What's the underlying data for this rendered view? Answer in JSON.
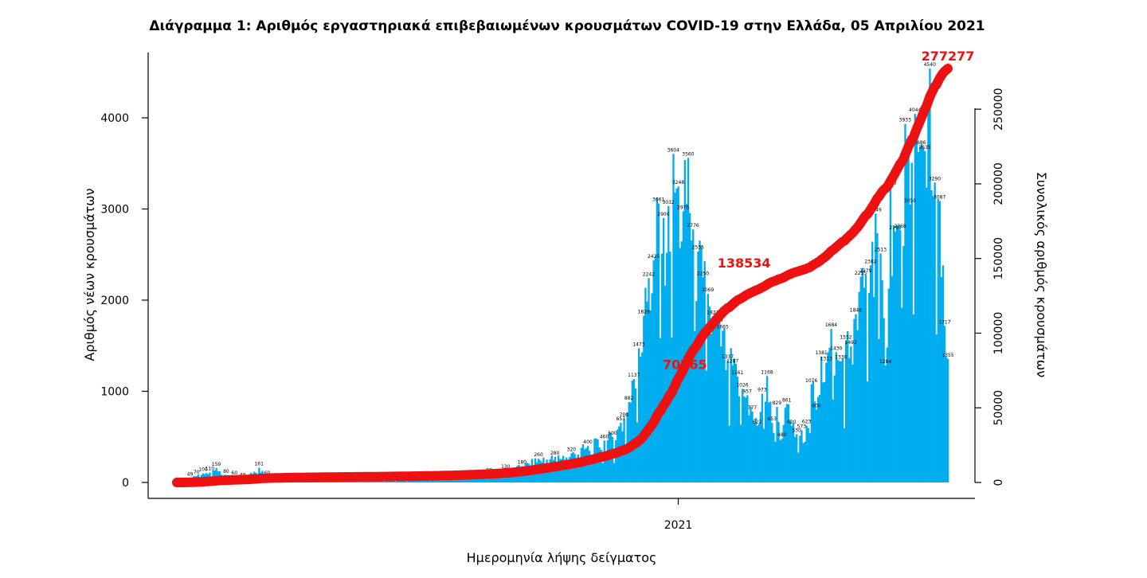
{
  "chart_data": {
    "type": "bar",
    "title": "Διάγραμμα 1: Αριθμός εργαστηριακά επιβεβαιωμένων κρουσμάτων COVID-19 στην Ελλάδα, 05 Απριλίου 2021",
    "xlabel": "Ημερομηνία λήψης δείγματος",
    "ylabel": "Αριθμός νέων κρουσμάτων",
    "y2label": "Συνολικός αριθμός κρουσμάτων",
    "x_tick_labels": [
      {
        "label": "2021",
        "day": 305
      }
    ],
    "ylim": [
      0,
      4600
    ],
    "y_ticks": [
      0,
      1000,
      2000,
      3000,
      4000
    ],
    "y2lim": [
      0,
      277277
    ],
    "y2_ticks": [
      0,
      50000,
      100000,
      150000,
      200000,
      250000
    ],
    "grid": false,
    "colors": {
      "bars": "#00aeef",
      "cumulative": "#ee1111"
    },
    "series": [
      {
        "type": "bar",
        "anchors": [
          [
            0,
            2
          ],
          [
            5,
            10
          ],
          [
            8,
            49
          ],
          [
            12,
            70
          ],
          [
            16,
            100
          ],
          [
            20,
            110
          ],
          [
            24,
            159
          ],
          [
            30,
            80
          ],
          [
            35,
            60
          ],
          [
            40,
            40
          ],
          [
            50,
            161
          ],
          [
            55,
            60
          ],
          [
            70,
            30
          ],
          [
            90,
            20
          ],
          [
            110,
            15
          ],
          [
            130,
            20
          ],
          [
            150,
            30
          ],
          [
            160,
            40
          ],
          [
            170,
            50
          ],
          [
            180,
            60
          ],
          [
            190,
            90
          ],
          [
            200,
            130
          ],
          [
            210,
            180
          ],
          [
            220,
            260
          ],
          [
            230,
            280
          ],
          [
            240,
            320
          ],
          [
            250,
            400
          ],
          [
            260,
            460
          ],
          [
            265,
            500
          ],
          [
            270,
            657
          ],
          [
            272,
            700
          ],
          [
            275,
            882
          ],
          [
            278,
            1137
          ],
          [
            281,
            1473
          ],
          [
            284,
            1828
          ],
          [
            287,
            2242
          ],
          [
            290,
            2435
          ],
          [
            293,
            3061
          ],
          [
            296,
            2900
          ],
          [
            299,
            3032
          ],
          [
            302,
            3604
          ],
          [
            305,
            3248
          ],
          [
            308,
            2975
          ],
          [
            311,
            3560
          ],
          [
            314,
            2776
          ],
          [
            317,
            2535
          ],
          [
            320,
            2250
          ],
          [
            323,
            2069
          ],
          [
            326,
            1823
          ],
          [
            329,
            1737
          ],
          [
            332,
            1665
          ],
          [
            335,
            1337
          ],
          [
            338,
            1287
          ],
          [
            341,
            1161
          ],
          [
            344,
            1026
          ],
          [
            347,
            957
          ],
          [
            350,
            777
          ],
          [
            353,
            622
          ],
          [
            356,
            973
          ],
          [
            359,
            1168
          ],
          [
            362,
            653
          ],
          [
            365,
            829
          ],
          [
            368,
            480
          ],
          [
            371,
            861
          ],
          [
            374,
            620
          ],
          [
            377,
            530
          ],
          [
            380,
            573
          ],
          [
            383,
            623
          ],
          [
            386,
            1076
          ],
          [
            389,
            800
          ],
          [
            392,
            1381
          ],
          [
            395,
            1313
          ],
          [
            398,
            1684
          ],
          [
            401,
            1430
          ],
          [
            404,
            1330
          ],
          [
            407,
            1552
          ],
          [
            410,
            1492
          ],
          [
            413,
            1846
          ],
          [
            416,
            2255
          ],
          [
            419,
            2279
          ],
          [
            422,
            2382
          ],
          [
            425,
            2949
          ],
          [
            428,
            2513
          ],
          [
            431,
            1284
          ],
          [
            434,
            3240
          ],
          [
            437,
            2753
          ],
          [
            440,
            2768
          ],
          [
            443,
            3933
          ],
          [
            446,
            3050
          ],
          [
            449,
            4044
          ],
          [
            452,
            3686
          ],
          [
            455,
            3635
          ],
          [
            458,
            4540
          ],
          [
            461,
            3290
          ],
          [
            464,
            3087
          ],
          [
            467,
            1717
          ],
          [
            469,
            1355
          ]
        ],
        "days": 470
      },
      {
        "type": "line",
        "name": "cumulative",
        "labels": [
          {
            "day": 309,
            "value": 70765
          },
          {
            "day": 345,
            "value": 138534
          },
          {
            "day": 469,
            "value": 277277
          }
        ]
      }
    ]
  }
}
